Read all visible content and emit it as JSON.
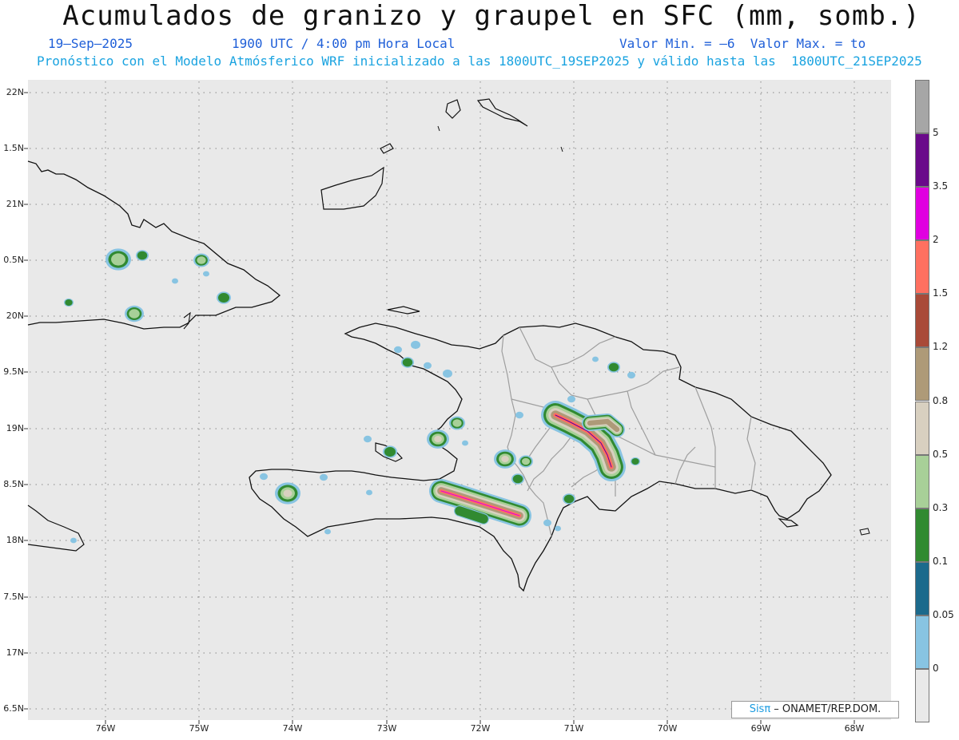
{
  "header": {
    "title": "Acumulados de granizo y graupel en SFC (mm, somb.)",
    "date": "19–Sep–2025",
    "time": "1900 UTC / 4:00 pm Hora Local",
    "minmax": "Valor Min. = –6  Valor Max. = to",
    "forecast": "Pronóstico con el Modelo Atmósferico WRF inicializado a las 1800UTC_19SEP2025 y válido hasta las  1800UTC_21SEP2025"
  },
  "map": {
    "background": "#e9e9e9",
    "lat_labels": [
      "22N",
      "1.5N",
      "21N",
      "0.5N",
      "20N",
      "9.5N",
      "19N",
      "8.5N",
      "18N",
      "7.5N",
      "17N",
      "6.5N"
    ],
    "lon_labels": [
      "76W",
      "75W",
      "74W",
      "73W",
      "72W",
      "71W",
      "70W",
      "69W",
      "68W"
    ]
  },
  "colorbar": {
    "labels": [
      "5",
      "3.5",
      "2",
      "1.5",
      "1.2",
      "0.8",
      "0.5",
      "0.3",
      "0.1",
      "0.05",
      "0"
    ],
    "colors": [
      "#a6a6a6",
      "#6a0a8a",
      "#e000e0",
      "#ff7060",
      "#a94a38",
      "#ae9a78",
      "#d8d0c0",
      "#a8d098",
      "#318a31",
      "#1c6a8c",
      "#88c4e2",
      "#e9e9e9"
    ]
  },
  "credit": {
    "brand": "Sisπ",
    "text": " – ONAMET/REP.DOM."
  }
}
